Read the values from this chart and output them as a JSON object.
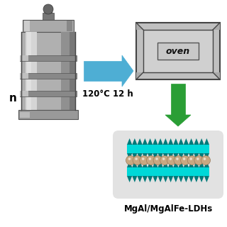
{
  "bg_color": "#ffffff",
  "arrow1_color": "#4eaed4",
  "arrow2_color": "#2a9e35",
  "oven_outer_color": "#c0c0c0",
  "oven_inner_color": "#d0d0d0",
  "oven_label": "oven",
  "condition_label": "120°C 12 h",
  "ldh_label": "MgAl/MgAlFe-LDHs",
  "ldh_bg_color": "#e2e2e2",
  "ldh_layer_color": "#00d8d8",
  "ldh_layer_dark": "#007a7a",
  "ldh_sphere_color": "#c8a882",
  "n_label": "n",
  "autoclave_body_color": "#b0b0b0",
  "autoclave_dark": "#555555",
  "autoclave_highlight": "#d8d8d8",
  "autoclave_shadow": "#888888"
}
